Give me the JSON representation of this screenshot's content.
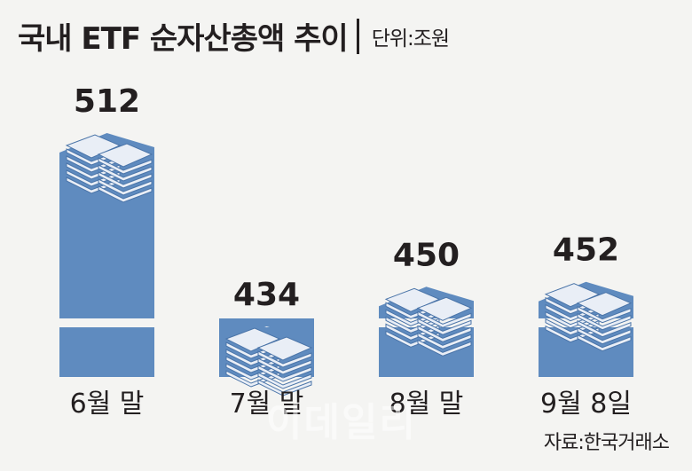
{
  "header": {
    "title": "국내 ETF 순자산총액 추이",
    "unit": "단위:조원"
  },
  "watermark": "이데일리",
  "source": "자료:한국거래소",
  "colors": {
    "bar": "#5f8bbf",
    "bar_dark": "#4a74a8",
    "paper": "#e9eef6",
    "background": "#f4f4f2",
    "text": "#231f20"
  },
  "chart_data": {
    "type": "bar",
    "categories": [
      "6월 말",
      "7월 말",
      "8월 말",
      "9월 8일"
    ],
    "values": [
      512,
      434,
      450,
      452
    ],
    "title": "국내 ETF 순자산총액 추이",
    "unit": "단위:조원",
    "grid": false,
    "legend": "none"
  }
}
